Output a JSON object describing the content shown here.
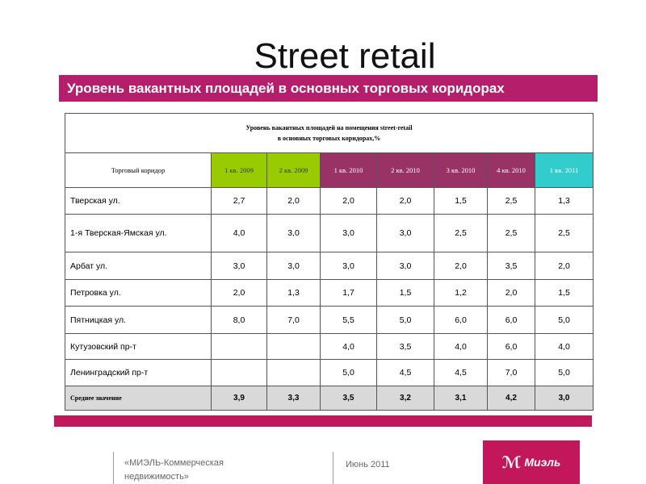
{
  "title": "Street retail",
  "subtitle": "Уровень вакантных площадей в основных торговых коридорах",
  "table": {
    "caption_line1": "Уровень вакантных площадей на помещения street-retail",
    "caption_line2": "в основных торговых коридорах,%",
    "corridor_header": "Торговый коридор",
    "quarters": [
      {
        "label": "1 кв. 2009",
        "color": "#99cc00"
      },
      {
        "label": "2 кв. 2009",
        "color": "#99cc00"
      },
      {
        "label": "1 кв. 2010",
        "color": "#993366"
      },
      {
        "label": "2 кв. 2010",
        "color": "#993366"
      },
      {
        "label": "3 кв. 2010",
        "color": "#993366"
      },
      {
        "label": "4 кв. 2010",
        "color": "#993366"
      },
      {
        "label": "1 кв. 2011",
        "color": "#33cccc"
      }
    ],
    "rows": [
      {
        "name": "Тверская ул.",
        "values": [
          "2,7",
          "2,0",
          "2,0",
          "2,0",
          "1,5",
          "2,5",
          "1,3"
        ]
      },
      {
        "name": "1-я Тверская-Ямская ул.",
        "values": [
          "4,0",
          "3,0",
          "3,0",
          "3,0",
          "2,5",
          "2,5",
          "2,5"
        ]
      },
      {
        "name": "Арбат ул.",
        "values": [
          "3,0",
          "3,0",
          "3,0",
          "3,0",
          "2,0",
          "3,5",
          "2,0"
        ]
      },
      {
        "name": "Петровка ул.",
        "values": [
          "2,0",
          "1,3",
          "1,7",
          "1,5",
          "1,2",
          "2,0",
          "1,5"
        ]
      },
      {
        "name": "Пятницкая ул.",
        "values": [
          "8,0",
          "7,0",
          "5,5",
          "5,0",
          "6,0",
          "6,0",
          "5,0"
        ]
      },
      {
        "name": "Кутузовский пр-т",
        "values": [
          "",
          "",
          "4,0",
          "3,5",
          "4,0",
          "6,0",
          "4,0"
        ]
      },
      {
        "name": "Ленинградский пр-т",
        "values": [
          "",
          "",
          "5,0",
          "4,5",
          "4,5",
          "7,0",
          "5,0"
        ]
      }
    ],
    "average": {
      "name": "Среднее значение",
      "values": [
        "3,9",
        "3,3",
        "3,5",
        "3,2",
        "3,1",
        "4,2",
        "3,0"
      ]
    }
  },
  "footer": {
    "company_line1": "«МИЭЛЬ-Коммерческая",
    "company_line2": "недвижимость»",
    "date": "Июнь 2011",
    "logo_text": "Миэль"
  }
}
